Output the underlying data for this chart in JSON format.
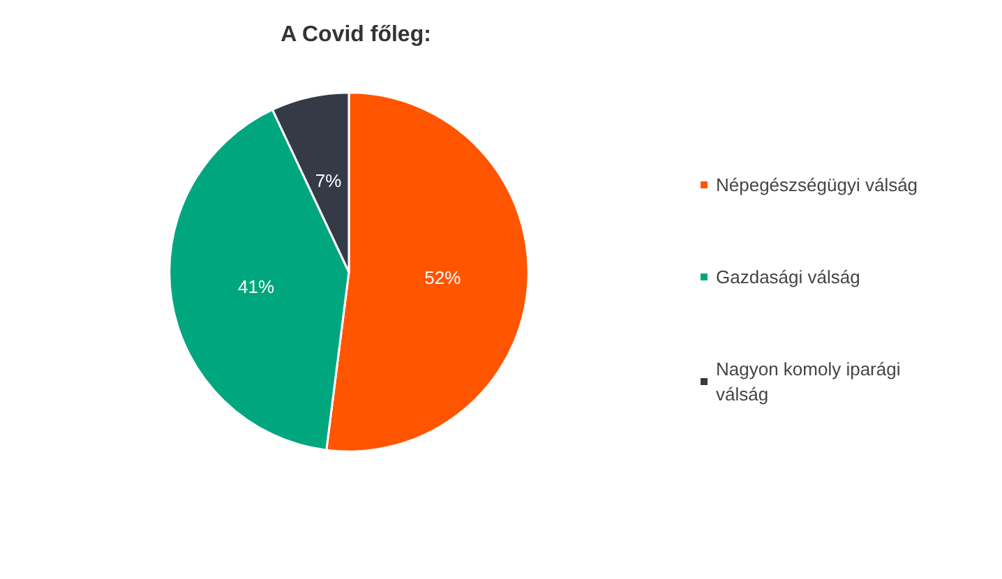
{
  "chart_data": {
    "type": "pie",
    "title": "A Covid főleg:",
    "categories": [
      "Népegészségügyi válság",
      "Gazdasági válság",
      "Nagyon komoly iparági válság"
    ],
    "values": [
      52,
      41,
      7
    ],
    "colors": [
      "#ff5500",
      "#00a67e",
      "#343a46"
    ],
    "value_labels": [
      "52%",
      "41%",
      "7%"
    ],
    "legend": "right"
  }
}
